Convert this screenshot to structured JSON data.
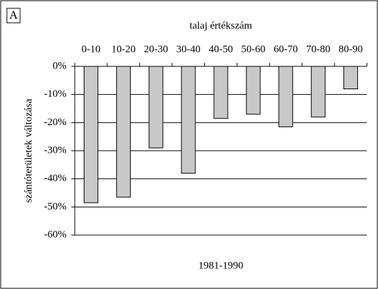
{
  "chart_data": {
    "type": "bar",
    "panel_label": "A",
    "x_label": "talaj értékszám",
    "y_label": "szántóterületek változása",
    "period_label": "1981-1990",
    "categories": [
      "0-10",
      "10-20",
      "20-30",
      "30-40",
      "40-50",
      "50-60",
      "60-70",
      "70-80",
      "80-90"
    ],
    "values": [
      -48.5,
      -46.5,
      -29,
      -38,
      -18.5,
      -17,
      -21.5,
      -18,
      -8
    ],
    "color": "#c8c8c8",
    "ylim": [
      -60,
      0
    ],
    "yticks": [
      {
        "value": 0,
        "label": "0%"
      },
      {
        "value": -10,
        "label": "-10%"
      },
      {
        "value": -20,
        "label": "-20%"
      },
      {
        "value": -30,
        "label": "-30%"
      },
      {
        "value": -40,
        "label": "-40%"
      },
      {
        "value": -50,
        "label": "-50%"
      },
      {
        "value": -60,
        "label": "-60%"
      }
    ],
    "grid": true
  }
}
